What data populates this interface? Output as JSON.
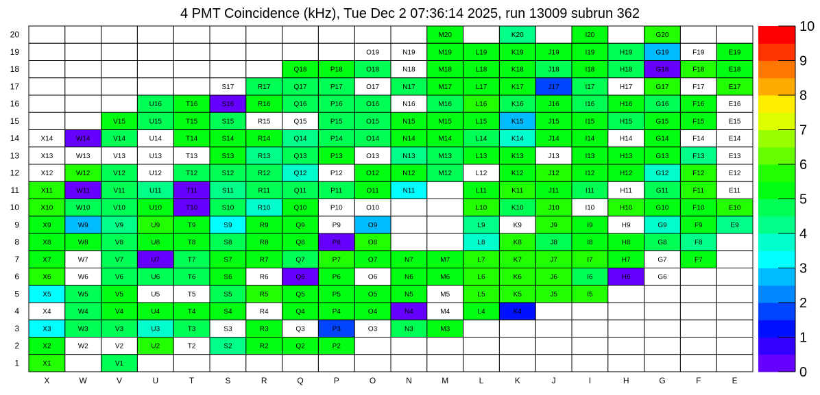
{
  "chart_data": {
    "type": "heatmap",
    "title": "4 PMT Coincidence (kHz), Tue Dec  2 07:36:14 2025, run 13009 subrun 362",
    "columns": [
      "X",
      "W",
      "V",
      "U",
      "T",
      "S",
      "R",
      "Q",
      "P",
      "O",
      "N",
      "M",
      "L",
      "K",
      "J",
      "I",
      "H",
      "G",
      "F",
      "E"
    ],
    "rows": [
      "20",
      "19",
      "18",
      "17",
      "16",
      "15",
      "14",
      "13",
      "12",
      "11",
      "10",
      "9",
      "8",
      "7",
      "6",
      "5",
      "4",
      "3",
      "2",
      "1"
    ],
    "zlim": [
      0,
      10
    ],
    "colorbar_ticks": [
      "0",
      "1",
      "2",
      "3",
      "4",
      "5",
      "6",
      "7",
      "8",
      "9",
      "10"
    ],
    "palette": [
      "#6600ff",
      "#3300ff",
      "#0011ff",
      "#0044ff",
      "#0088ff",
      "#00bbff",
      "#00ffff",
      "#00ffcc",
      "#00ff88",
      "#00ff55",
      "#00ff11",
      "#22ff00",
      "#66ff00",
      "#99ff00",
      "#ddff00",
      "#ffee00",
      "#ffaa00",
      "#ff7700",
      "#ff3300",
      "#ff0000"
    ],
    "note_values": "null = empty cell without label; 0 = labelled cell with no colour",
    "values": [
      [
        null,
        null,
        null,
        null,
        null,
        null,
        null,
        null,
        null,
        null,
        null,
        5.2,
        null,
        4.2,
        null,
        5.2,
        null,
        5.7,
        null,
        null
      ],
      [
        null,
        null,
        null,
        null,
        null,
        null,
        null,
        null,
        null,
        0,
        0,
        5.2,
        5.2,
        5.2,
        5.2,
        5.2,
        4.7,
        2.7,
        0,
        5.2
      ],
      [
        null,
        null,
        null,
        null,
        null,
        null,
        null,
        5.2,
        5.2,
        4.7,
        0,
        5.2,
        5.2,
        5.2,
        4.7,
        5.2,
        4.7,
        0.2,
        5.7,
        5.2
      ],
      [
        null,
        null,
        null,
        null,
        null,
        0,
        4.7,
        4.7,
        4.7,
        0,
        4.7,
        5.2,
        5.2,
        5.2,
        1.7,
        4.7,
        0,
        5.7,
        0,
        5.7
      ],
      [
        null,
        null,
        null,
        4.7,
        5.2,
        0.2,
        5.2,
        4.7,
        4.7,
        4.7,
        0,
        4.7,
        5.7,
        4.7,
        5.2,
        4.7,
        5.2,
        4.7,
        5.2,
        0
      ],
      [
        null,
        null,
        5.2,
        4.7,
        5.2,
        4.7,
        0,
        0,
        4.7,
        4.7,
        5.2,
        5.2,
        5.2,
        2.7,
        5.2,
        5.2,
        4.7,
        5.2,
        5.2,
        0
      ],
      [
        0,
        0.2,
        4.7,
        0,
        5.2,
        5.2,
        5.2,
        4.2,
        4.7,
        4.7,
        5.2,
        5.2,
        4.7,
        3.7,
        5.2,
        5.2,
        0,
        5.2,
        0,
        0
      ],
      [
        0,
        0,
        0,
        0,
        0,
        5.2,
        4.2,
        4.7,
        5.2,
        0,
        4.2,
        4.7,
        5.2,
        5.2,
        0,
        5.2,
        5.2,
        5.2,
        4.2,
        0
      ],
      [
        0,
        5.7,
        4.7,
        0,
        4.7,
        4.7,
        4.7,
        3.7,
        0,
        5.2,
        5.2,
        4.7,
        0,
        5.2,
        5.7,
        5.2,
        5.2,
        3.7,
        5.7,
        0
      ],
      [
        5.7,
        0.2,
        4.7,
        4.2,
        0.2,
        4.2,
        4.7,
        4.7,
        4.7,
        5.2,
        3.2,
        null,
        5.2,
        5.7,
        5.2,
        4.7,
        0,
        4.7,
        5.7,
        0
      ],
      [
        5.7,
        4.7,
        4.7,
        5.2,
        0.2,
        4.7,
        3.7,
        5.2,
        0,
        0,
        null,
        null,
        5.7,
        4.7,
        5.7,
        0,
        5.7,
        5.2,
        5.2,
        5.7
      ],
      [
        5.2,
        2.7,
        4.2,
        5.7,
        5.2,
        3.2,
        5.2,
        5.2,
        0,
        2.7,
        null,
        null,
        4.2,
        0,
        5.7,
        5.2,
        0,
        3.7,
        5.2,
        4.2
      ],
      [
        5.2,
        5.2,
        4.7,
        5.2,
        5.2,
        4.7,
        5.2,
        5.2,
        0.2,
        5.7,
        null,
        null,
        3.7,
        5.7,
        4.7,
        5.2,
        5.2,
        4.7,
        4.2,
        null
      ],
      [
        5.2,
        0,
        4.7,
        0.2,
        4.7,
        5.2,
        5.2,
        4.7,
        5.7,
        5.2,
        5.2,
        5.2,
        5.7,
        5.7,
        5.7,
        5.7,
        5.2,
        0,
        5.2,
        null
      ],
      [
        5.7,
        0,
        4.7,
        4.7,
        4.7,
        5.2,
        0,
        0.2,
        5.2,
        0,
        5.2,
        5.2,
        5.7,
        5.7,
        5.7,
        4.7,
        0.2,
        0,
        null,
        null
      ],
      [
        3.2,
        4.7,
        5.2,
        0,
        0,
        4.7,
        5.7,
        5.2,
        5.2,
        5.2,
        5.2,
        0,
        5.7,
        5.7,
        5.7,
        5.7,
        null,
        null,
        null,
        null
      ],
      [
        0,
        4.7,
        5.2,
        5.2,
        5.2,
        5.2,
        0,
        5.2,
        5.2,
        5.2,
        0.2,
        0,
        5.2,
        1.2,
        null,
        null,
        null,
        null,
        null,
        null
      ],
      [
        3.2,
        4.7,
        4.7,
        3.7,
        4.7,
        0,
        5.2,
        0,
        1.7,
        0,
        4.7,
        5.2,
        null,
        null,
        null,
        null,
        null,
        null,
        null,
        null
      ],
      [
        5.2,
        0,
        0,
        5.7,
        0,
        4.2,
        5.2,
        5.2,
        5.2,
        null,
        null,
        null,
        null,
        null,
        null,
        null,
        null,
        null,
        null,
        null
      ],
      [
        5.7,
        null,
        4.7,
        null,
        null,
        null,
        null,
        null,
        null,
        null,
        null,
        null,
        null,
        null,
        null,
        null,
        null,
        null,
        null,
        null
      ]
    ]
  }
}
